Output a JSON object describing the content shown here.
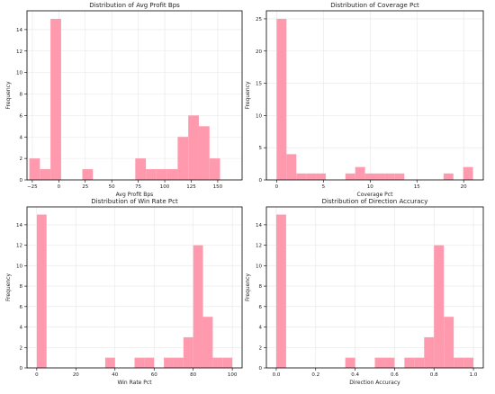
{
  "colors": {
    "bar": "#ff9aae",
    "grid": "#e6e6e6",
    "axis": "#000000",
    "background": "#ffffff"
  },
  "chart_data": [
    {
      "type": "bar",
      "title": "Distribution of Avg Profit Bps",
      "xlabel": "Avg Profit Bps",
      "ylabel": "Frequency",
      "xlim": [
        -30,
        173
      ],
      "ylim": [
        0,
        15.75
      ],
      "xticks": [
        -25,
        0,
        25,
        50,
        75,
        100,
        125,
        150
      ],
      "xtick_labels": [
        "−25",
        "0",
        "25",
        "50",
        "75",
        "100",
        "125",
        "150"
      ],
      "yticks": [
        0,
        2,
        4,
        6,
        8,
        10,
        12,
        14
      ],
      "grid": true,
      "bins": [
        {
          "x0": -27.8,
          "x1": -17.8,
          "count": 2
        },
        {
          "x0": -17.8,
          "x1": -7.8,
          "count": 1
        },
        {
          "x0": -7.8,
          "x1": 2.2,
          "count": 15
        },
        {
          "x0": 2.2,
          "x1": 12.2,
          "count": 0
        },
        {
          "x0": 12.2,
          "x1": 22.2,
          "count": 0
        },
        {
          "x0": 22.2,
          "x1": 32.2,
          "count": 1
        },
        {
          "x0": 32.2,
          "x1": 42.2,
          "count": 0
        },
        {
          "x0": 42.2,
          "x1": 52.2,
          "count": 0
        },
        {
          "x0": 52.2,
          "x1": 62.2,
          "count": 0
        },
        {
          "x0": 62.2,
          "x1": 72.2,
          "count": 0
        },
        {
          "x0": 72.2,
          "x1": 82.2,
          "count": 2
        },
        {
          "x0": 82.2,
          "x1": 92.2,
          "count": 1
        },
        {
          "x0": 92.2,
          "x1": 102.2,
          "count": 1
        },
        {
          "x0": 102.2,
          "x1": 112.2,
          "count": 1
        },
        {
          "x0": 112.2,
          "x1": 122.2,
          "count": 4
        },
        {
          "x0": 122.2,
          "x1": 132.2,
          "count": 6
        },
        {
          "x0": 132.2,
          "x1": 142.2,
          "count": 5
        },
        {
          "x0": 142.2,
          "x1": 152.2,
          "count": 2
        },
        {
          "x0": 152.2,
          "x1": 162.2,
          "count": 0
        },
        {
          "x0": 162.2,
          "x1": 167.8,
          "count": 0
        }
      ]
    },
    {
      "type": "bar",
      "title": "Distribution of Coverage Pct",
      "xlabel": "Coverage Pct",
      "ylabel": "Frequency",
      "xlim": [
        -1.1,
        22.1
      ],
      "ylim": [
        0,
        26.25
      ],
      "xticks": [
        0,
        5,
        10,
        15,
        20
      ],
      "xtick_labels": [
        "0",
        "5",
        "10",
        "15",
        "20"
      ],
      "yticks": [
        0,
        5,
        10,
        15,
        20,
        25
      ],
      "grid": true,
      "bins": [
        {
          "x0": 0.0,
          "x1": 1.05,
          "count": 25
        },
        {
          "x0": 1.05,
          "x1": 2.1,
          "count": 4
        },
        {
          "x0": 2.1,
          "x1": 3.15,
          "count": 1
        },
        {
          "x0": 3.15,
          "x1": 4.2,
          "count": 1
        },
        {
          "x0": 4.2,
          "x1": 5.25,
          "count": 1
        },
        {
          "x0": 5.25,
          "x1": 6.3,
          "count": 0
        },
        {
          "x0": 6.3,
          "x1": 7.35,
          "count": 0
        },
        {
          "x0": 7.35,
          "x1": 8.4,
          "count": 1
        },
        {
          "x0": 8.4,
          "x1": 9.45,
          "count": 2
        },
        {
          "x0": 9.45,
          "x1": 10.5,
          "count": 1
        },
        {
          "x0": 10.5,
          "x1": 11.55,
          "count": 1
        },
        {
          "x0": 11.55,
          "x1": 12.6,
          "count": 1
        },
        {
          "x0": 12.6,
          "x1": 13.65,
          "count": 1
        },
        {
          "x0": 13.65,
          "x1": 14.7,
          "count": 0
        },
        {
          "x0": 14.7,
          "x1": 15.75,
          "count": 0
        },
        {
          "x0": 15.75,
          "x1": 16.8,
          "count": 0
        },
        {
          "x0": 16.8,
          "x1": 17.85,
          "count": 0
        },
        {
          "x0": 17.85,
          "x1": 18.9,
          "count": 1
        },
        {
          "x0": 18.9,
          "x1": 19.95,
          "count": 0
        },
        {
          "x0": 19.95,
          "x1": 21.0,
          "count": 2
        }
      ]
    },
    {
      "type": "bar",
      "title": "Distribution of Win Rate Pct",
      "xlabel": "Win Rate Pct",
      "ylabel": "Frequency",
      "xlim": [
        -5,
        105
      ],
      "ylim": [
        0,
        15.75
      ],
      "xticks": [
        0,
        20,
        40,
        60,
        80,
        100
      ],
      "xtick_labels": [
        "0",
        "20",
        "40",
        "60",
        "80",
        "100"
      ],
      "yticks": [
        0,
        2,
        4,
        6,
        8,
        10,
        12,
        14
      ],
      "grid": true,
      "bins": [
        {
          "x0": 0,
          "x1": 5,
          "count": 15
        },
        {
          "x0": 5,
          "x1": 10,
          "count": 0
        },
        {
          "x0": 10,
          "x1": 15,
          "count": 0
        },
        {
          "x0": 15,
          "x1": 20,
          "count": 0
        },
        {
          "x0": 20,
          "x1": 25,
          "count": 0
        },
        {
          "x0": 25,
          "x1": 30,
          "count": 0
        },
        {
          "x0": 30,
          "x1": 35,
          "count": 0
        },
        {
          "x0": 35,
          "x1": 40,
          "count": 1
        },
        {
          "x0": 40,
          "x1": 45,
          "count": 0
        },
        {
          "x0": 45,
          "x1": 50,
          "count": 0
        },
        {
          "x0": 50,
          "x1": 55,
          "count": 1
        },
        {
          "x0": 55,
          "x1": 60,
          "count": 1
        },
        {
          "x0": 60,
          "x1": 65,
          "count": 0
        },
        {
          "x0": 65,
          "x1": 70,
          "count": 1
        },
        {
          "x0": 70,
          "x1": 75,
          "count": 1
        },
        {
          "x0": 75,
          "x1": 80,
          "count": 3
        },
        {
          "x0": 80,
          "x1": 85,
          "count": 12
        },
        {
          "x0": 85,
          "x1": 90,
          "count": 5
        },
        {
          "x0": 90,
          "x1": 95,
          "count": 1
        },
        {
          "x0": 95,
          "x1": 100,
          "count": 1
        }
      ]
    },
    {
      "type": "bar",
      "title": "Distribution of Direction Accuracy",
      "xlabel": "Direction Accuracy",
      "ylabel": "Frequency",
      "xlim": [
        -0.05,
        1.05
      ],
      "ylim": [
        0,
        15.75
      ],
      "xticks": [
        0.0,
        0.2,
        0.4,
        0.6,
        0.8,
        1.0
      ],
      "xtick_labels": [
        "0.0",
        "0.2",
        "0.4",
        "0.6",
        "0.8",
        "1.0"
      ],
      "yticks": [
        0,
        2,
        4,
        6,
        8,
        10,
        12,
        14
      ],
      "grid": true,
      "bins": [
        {
          "x0": 0.0,
          "x1": 0.05,
          "count": 15
        },
        {
          "x0": 0.05,
          "x1": 0.1,
          "count": 0
        },
        {
          "x0": 0.1,
          "x1": 0.15,
          "count": 0
        },
        {
          "x0": 0.15,
          "x1": 0.2,
          "count": 0
        },
        {
          "x0": 0.2,
          "x1": 0.25,
          "count": 0
        },
        {
          "x0": 0.25,
          "x1": 0.3,
          "count": 0
        },
        {
          "x0": 0.3,
          "x1": 0.35,
          "count": 0
        },
        {
          "x0": 0.35,
          "x1": 0.4,
          "count": 1
        },
        {
          "x0": 0.4,
          "x1": 0.45,
          "count": 0
        },
        {
          "x0": 0.45,
          "x1": 0.5,
          "count": 0
        },
        {
          "x0": 0.5,
          "x1": 0.55,
          "count": 1
        },
        {
          "x0": 0.55,
          "x1": 0.6,
          "count": 1
        },
        {
          "x0": 0.6,
          "x1": 0.65,
          "count": 0
        },
        {
          "x0": 0.65,
          "x1": 0.7,
          "count": 1
        },
        {
          "x0": 0.7,
          "x1": 0.75,
          "count": 1
        },
        {
          "x0": 0.75,
          "x1": 0.8,
          "count": 3
        },
        {
          "x0": 0.8,
          "x1": 0.85,
          "count": 12
        },
        {
          "x0": 0.85,
          "x1": 0.9,
          "count": 5
        },
        {
          "x0": 0.9,
          "x1": 0.95,
          "count": 1
        },
        {
          "x0": 0.95,
          "x1": 1.0,
          "count": 1
        }
      ]
    }
  ]
}
